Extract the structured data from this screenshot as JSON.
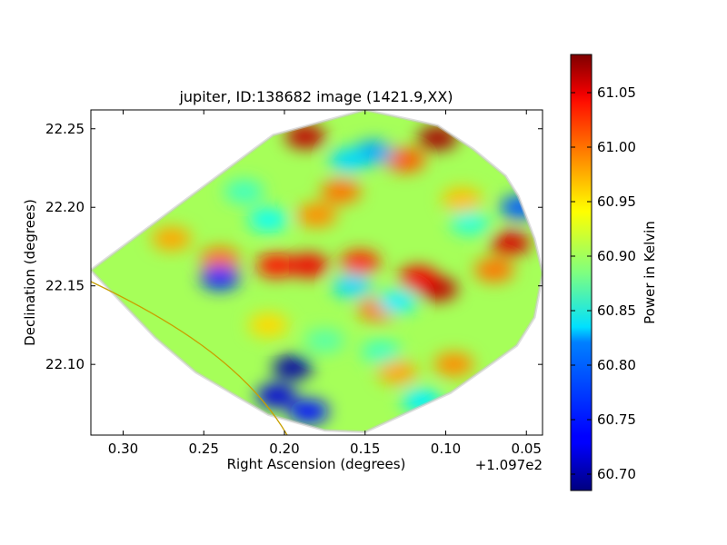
{
  "chart_data": {
    "type": "heatmap",
    "title": "jupiter, ID:138682 image (1421.9,XX)",
    "xlabel": "Right Ascension (degrees)",
    "ylabel": "Declination (degrees)",
    "x_offset_label": "+1.097e2",
    "xlim": [
      0.32,
      0.04
    ],
    "ylim": [
      22.055,
      22.262
    ],
    "x_ticks": [
      0.3,
      0.25,
      0.2,
      0.15,
      0.1,
      0.05
    ],
    "x_tick_labels": [
      "0.30",
      "0.25",
      "0.20",
      "0.15",
      "0.10",
      "0.05"
    ],
    "y_ticks": [
      22.25,
      22.2,
      22.15,
      22.1
    ],
    "y_tick_labels": [
      "22.25",
      "22.20",
      "22.15",
      "22.10"
    ],
    "colorbar": {
      "label": "Power in Kelvin",
      "range": [
        60.685,
        61.085
      ],
      "ticks": [
        60.7,
        60.75,
        60.8,
        60.85,
        60.9,
        60.95,
        61.0,
        61.05
      ],
      "tick_labels": [
        "60.70",
        "60.75",
        "60.80",
        "60.85",
        "60.90",
        "60.95",
        "61.00",
        "61.05"
      ],
      "colormap": "jet"
    },
    "coverage_polygon": [
      [
        0.32,
        22.16
      ],
      [
        0.207,
        22.246
      ],
      [
        0.15,
        22.262
      ],
      [
        0.105,
        22.252
      ],
      [
        0.083,
        22.237
      ],
      [
        0.063,
        22.22
      ],
      [
        0.055,
        22.207
      ],
      [
        0.045,
        22.18
      ],
      [
        0.04,
        22.158
      ],
      [
        0.045,
        22.13
      ],
      [
        0.056,
        22.112
      ],
      [
        0.075,
        22.098
      ],
      [
        0.097,
        22.082
      ],
      [
        0.15,
        22.057
      ],
      [
        0.175,
        22.058
      ],
      [
        0.21,
        22.068
      ],
      [
        0.255,
        22.095
      ],
      [
        0.28,
        22.117
      ]
    ],
    "background_level": 60.9,
    "features": [
      {
        "ra": 0.187,
        "dec": 22.245,
        "value": 61.06
      },
      {
        "ra": 0.165,
        "dec": 22.21,
        "value": 60.99
      },
      {
        "ra": 0.18,
        "dec": 22.195,
        "value": 60.98
      },
      {
        "ra": 0.105,
        "dec": 22.244,
        "value": 61.07
      },
      {
        "ra": 0.125,
        "dec": 22.23,
        "value": 61.0
      },
      {
        "ra": 0.09,
        "dec": 22.205,
        "value": 60.96
      },
      {
        "ra": 0.06,
        "dec": 22.177,
        "value": 61.05
      },
      {
        "ra": 0.07,
        "dec": 22.16,
        "value": 60.99
      },
      {
        "ra": 0.105,
        "dec": 22.148,
        "value": 61.06
      },
      {
        "ra": 0.117,
        "dec": 22.155,
        "value": 61.04
      },
      {
        "ra": 0.205,
        "dec": 22.163,
        "value": 61.03
      },
      {
        "ra": 0.185,
        "dec": 22.163,
        "value": 61.04
      },
      {
        "ra": 0.24,
        "dec": 22.167,
        "value": 60.99
      },
      {
        "ra": 0.153,
        "dec": 22.165,
        "value": 61.02
      },
      {
        "ra": 0.142,
        "dec": 22.135,
        "value": 60.99
      },
      {
        "ra": 0.27,
        "dec": 22.18,
        "value": 60.97
      },
      {
        "ra": 0.13,
        "dec": 22.095,
        "value": 60.97
      },
      {
        "ra": 0.095,
        "dec": 22.1,
        "value": 60.98
      },
      {
        "ra": 0.21,
        "dec": 22.125,
        "value": 60.95
      },
      {
        "ra": 0.24,
        "dec": 22.155,
        "value": 60.75
      },
      {
        "ra": 0.195,
        "dec": 22.098,
        "value": 60.7
      },
      {
        "ra": 0.205,
        "dec": 22.08,
        "value": 60.72
      },
      {
        "ra": 0.185,
        "dec": 22.07,
        "value": 60.74
      },
      {
        "ra": 0.145,
        "dec": 22.235,
        "value": 60.8
      },
      {
        "ra": 0.16,
        "dec": 22.23,
        "value": 60.82
      },
      {
        "ra": 0.21,
        "dec": 22.192,
        "value": 60.84
      },
      {
        "ra": 0.054,
        "dec": 22.2,
        "value": 60.77
      },
      {
        "ra": 0.085,
        "dec": 22.19,
        "value": 60.85
      },
      {
        "ra": 0.13,
        "dec": 22.14,
        "value": 60.83
      },
      {
        "ra": 0.158,
        "dec": 22.15,
        "value": 60.82
      },
      {
        "ra": 0.115,
        "dec": 22.077,
        "value": 60.83
      },
      {
        "ra": 0.14,
        "dec": 22.108,
        "value": 60.86
      },
      {
        "ra": 0.225,
        "dec": 22.21,
        "value": 60.86
      },
      {
        "ra": 0.175,
        "dec": 22.115,
        "value": 60.87
      }
    ]
  },
  "annotations": {
    "limb_arc_color": "#c8a000"
  }
}
